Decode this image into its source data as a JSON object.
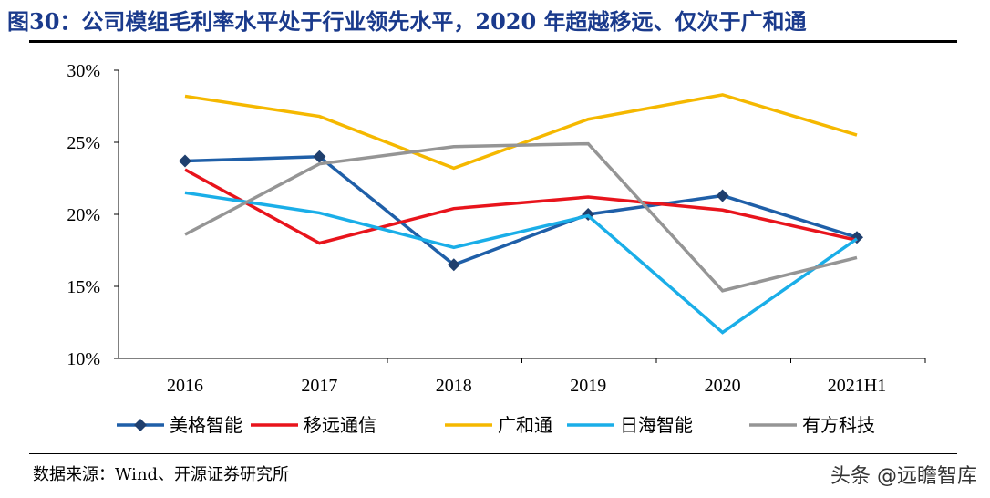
{
  "title": "图30：公司模组毛利率水平处于行业领先水平，2020 年超越移远、仅次于广和通",
  "source": "数据来源：Wind、开源证券研究所",
  "watermark": "头条 @远瞻智库",
  "chart_data": {
    "type": "line",
    "title": "",
    "xlabel": "",
    "ylabel": "",
    "categories": [
      "2016",
      "2017",
      "2018",
      "2019",
      "2020",
      "2021H1"
    ],
    "ylim": [
      10,
      30
    ],
    "yticks": [
      10,
      15,
      20,
      25,
      30
    ],
    "ytick_labels": [
      "10%",
      "15%",
      "20%",
      "25%",
      "30%"
    ],
    "grid": false,
    "legend_position": "bottom",
    "series": [
      {
        "name": "美格智能",
        "color": "#1f5fa8",
        "marker": "diamond",
        "values": [
          23.7,
          24.0,
          16.5,
          20.0,
          21.3,
          18.4
        ]
      },
      {
        "name": "移远通信",
        "color": "#e8141c",
        "marker": "none",
        "values": [
          23.1,
          18.0,
          20.4,
          21.2,
          20.3,
          18.2
        ]
      },
      {
        "name": "广和通",
        "color": "#f5b800",
        "marker": "none",
        "values": [
          28.2,
          26.8,
          23.2,
          26.6,
          28.3,
          25.5
        ]
      },
      {
        "name": "日海智能",
        "color": "#1aaee8",
        "marker": "none",
        "values": [
          21.5,
          20.1,
          17.7,
          19.9,
          11.8,
          18.3
        ]
      },
      {
        "name": "有方科技",
        "color": "#959595",
        "marker": "none",
        "values": [
          18.6,
          23.5,
          24.7,
          24.9,
          14.7,
          17.0
        ]
      }
    ]
  }
}
